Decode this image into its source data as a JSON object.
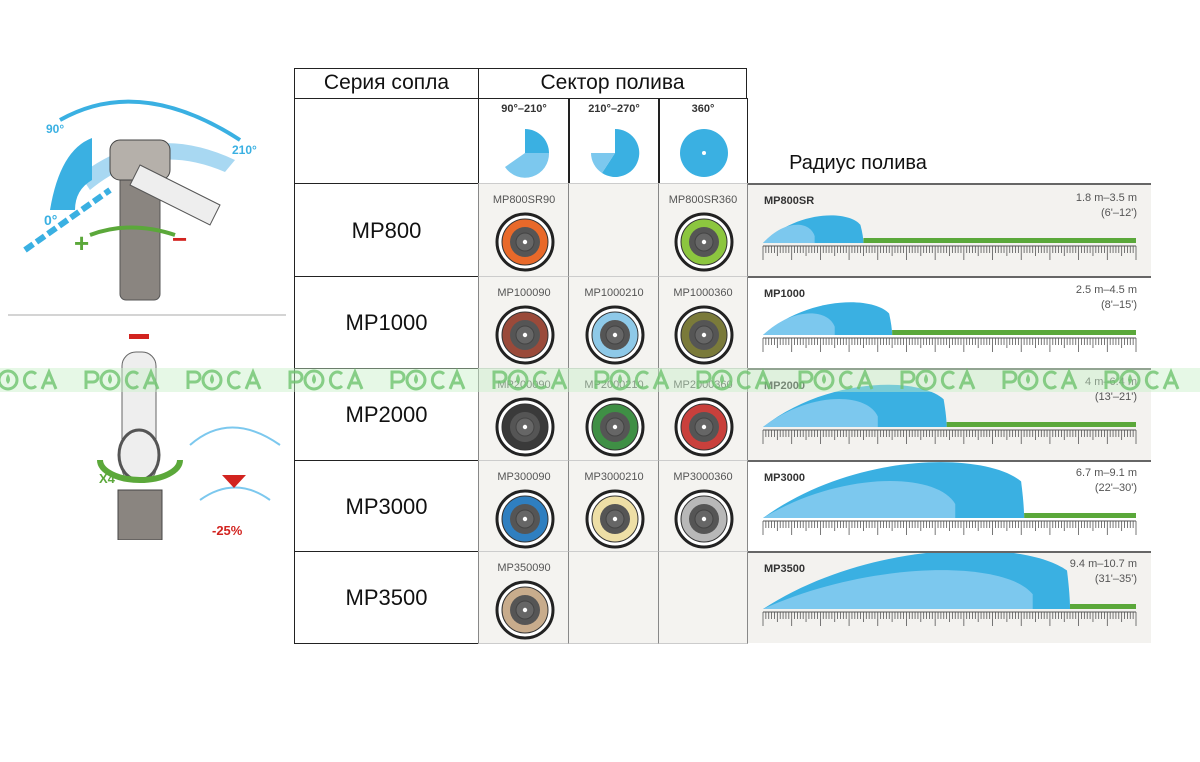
{
  "illustration": {
    "angle_labels": [
      "90°",
      "210°",
      "0°"
    ],
    "adjust_plus": "+",
    "adjust_minus": "−",
    "turns_label": "X4",
    "reduction_label": "-25%"
  },
  "table": {
    "header_series": "Серия сопла",
    "header_sector": "Сектор полива",
    "header_radius": "Радиус полива",
    "sectors": [
      {
        "label": "90°–210°"
      },
      {
        "label": "210°–270°"
      },
      {
        "label": "360°"
      }
    ],
    "rows": [
      {
        "series": "MP800",
        "nozzles": [
          {
            "code": "MP800SR90",
            "color": "#e8692a"
          },
          null,
          {
            "code": "MP800SR360",
            "color": "#8cc63f"
          }
        ],
        "radius": {
          "name": "MP800SR",
          "metric": "1.8 m–3.5 m",
          "imperial": "(6'–12')",
          "min_m": 1.8,
          "max_m": 3.5
        }
      },
      {
        "series": "MP1000",
        "nozzles": [
          {
            "code": "MP100090",
            "color": "#9a4a3a"
          },
          {
            "code": "MP1000210",
            "color": "#8ec9e8"
          },
          {
            "code": "MP1000360",
            "color": "#7a7a3a"
          }
        ],
        "radius": {
          "name": "MP1000",
          "metric": "2.5 m–4.5 m",
          "imperial": "(8'–15')",
          "min_m": 2.5,
          "max_m": 4.5
        }
      },
      {
        "series": "MP2000",
        "nozzles": [
          {
            "code": "MP200090",
            "color": "#3a3a3a"
          },
          {
            "code": "MP2000210",
            "color": "#3f8f45"
          },
          {
            "code": "MP2000360",
            "color": "#c9403c"
          }
        ],
        "radius": {
          "name": "MP2000",
          "metric": "4 m–6.4 m",
          "imperial": "(13'–21')",
          "min_m": 4.0,
          "max_m": 6.4
        }
      },
      {
        "series": "MP3000",
        "nozzles": [
          {
            "code": "MP300090",
            "color": "#2f7fc0"
          },
          {
            "code": "MP3000210",
            "color": "#eedfa6"
          },
          {
            "code": "MP3000360",
            "color": "#b8b8b8"
          }
        ],
        "radius": {
          "name": "MP3000",
          "metric": "6.7 m–9.1 m",
          "imperial": "(22'–30')",
          "min_m": 6.7,
          "max_m": 9.1
        }
      },
      {
        "series": "MP3500",
        "nozzles": [
          {
            "code": "MP350090",
            "color": "#c8ac8c"
          },
          null,
          null
        ],
        "radius": {
          "name": "MP3500",
          "metric": "9.4 m–10.7 m",
          "imperial": "(31'–35')",
          "min_m": 9.4,
          "max_m": 10.7
        }
      }
    ]
  },
  "watermark": "P◉CA ",
  "colors": {
    "water_dark": "#3ab0e2",
    "water_light": "#7cc8ee",
    "grass": "#5aa83a",
    "red": "#d2231f",
    "green": "#5ba83a"
  }
}
